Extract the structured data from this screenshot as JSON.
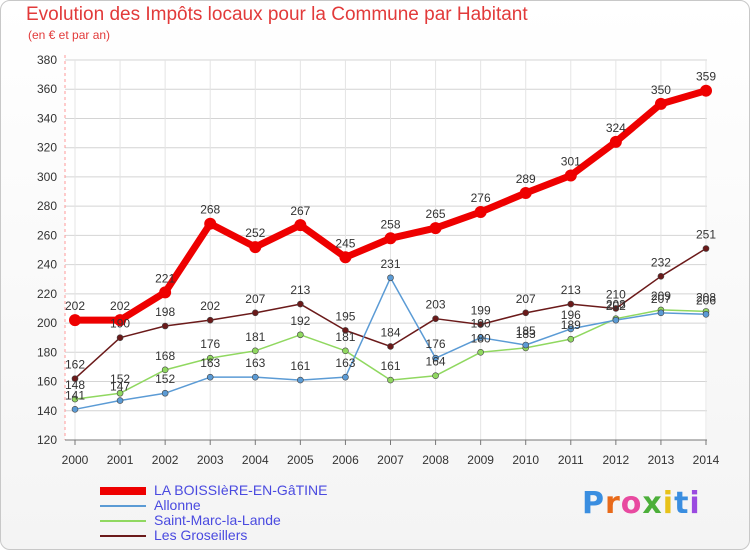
{
  "title": "Evolution des Impôts locaux pour la Commune par Habitant",
  "subtitle": "(en € et par an)",
  "brand": "Proxiti",
  "chart_data": {
    "type": "line",
    "title": "Evolution des Impôts locaux pour la Commune par Habitant",
    "subtitle": "(en € et par an)",
    "xlabel": "",
    "ylabel": "",
    "ylim": [
      120,
      380
    ],
    "yticks": [
      120,
      140,
      160,
      180,
      200,
      220,
      240,
      260,
      280,
      300,
      320,
      340,
      360,
      380
    ],
    "grid": true,
    "legend_position": "bottom-left",
    "x": [
      "2000",
      "2001",
      "2002",
      "2003",
      "2004",
      "2005",
      "2006",
      "2007",
      "2008",
      "2009",
      "2010",
      "2011",
      "2012",
      "2013",
      "2014"
    ],
    "series": [
      {
        "name": "LA BOISSIèRE-EN-GâTINE",
        "color": "#ee0000",
        "values": [
          202,
          202,
          221,
          268,
          252,
          267,
          245,
          258,
          265,
          276,
          289,
          301,
          324,
          350,
          359
        ]
      },
      {
        "name": "Allonne",
        "color": "#5b9bd5",
        "values": [
          141,
          147,
          152,
          163,
          163,
          161,
          163,
          231,
          176,
          190,
          185,
          196,
          202,
          207,
          206
        ]
      },
      {
        "name": "Saint-Marc-la-Lande",
        "color": "#90d860",
        "values": [
          148,
          152,
          168,
          176,
          181,
          192,
          181,
          161,
          164,
          180,
          183,
          189,
          203,
          209,
          208
        ]
      },
      {
        "name": "Les Groseillers",
        "color": "#6b1a1a",
        "values": [
          162,
          190,
          198,
          202,
          207,
          213,
          195,
          184,
          203,
          199,
          207,
          213,
          210,
          232,
          251
        ]
      }
    ]
  }
}
